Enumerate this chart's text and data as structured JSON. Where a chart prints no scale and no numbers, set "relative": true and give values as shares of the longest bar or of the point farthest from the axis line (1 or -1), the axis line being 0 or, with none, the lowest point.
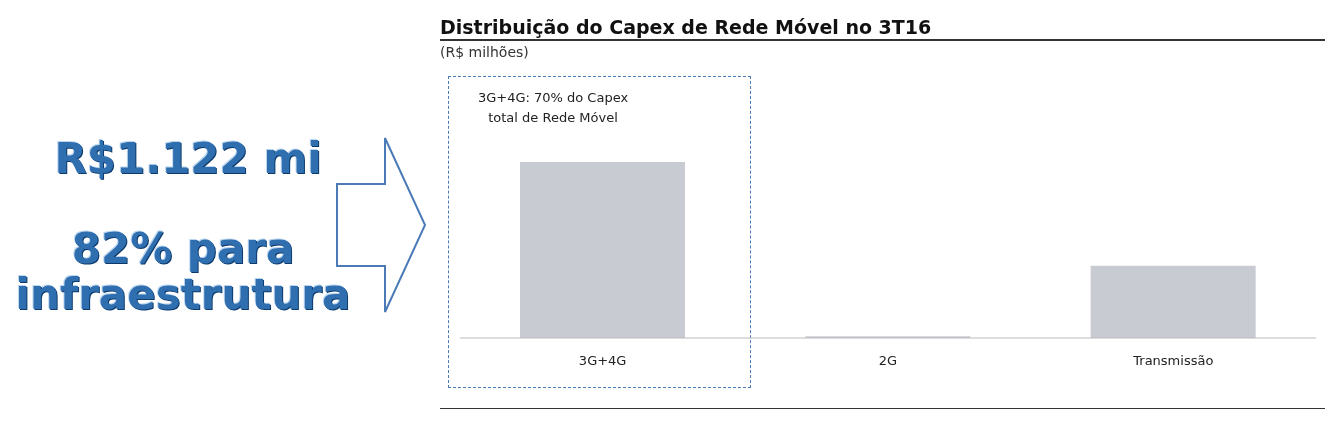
{
  "chart_data": {
    "type": "bar",
    "title": "Distribuição do Capex de Rede Móvel no 3T16",
    "subtitle": "(R$ milhões)",
    "categories": [
      "3G+4G",
      "2G",
      "Transmissão"
    ],
    "values": [
      1,
      0.01,
      0.41
    ],
    "color": "#c9cbd3",
    "relative": true,
    "annotations": [
      "R$1.122 mi",
      "82% para infraestrutura",
      "3G+4G: 70% do Capex total de Rede Móvel"
    ]
  }
}
